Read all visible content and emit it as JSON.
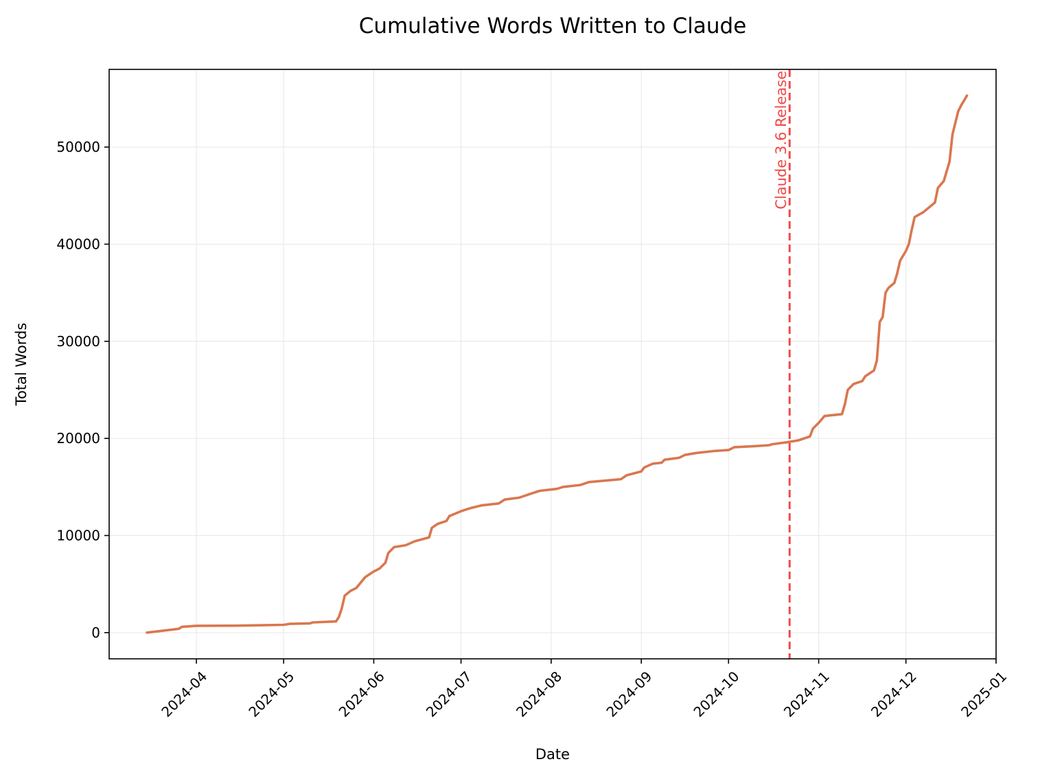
{
  "chart_data": {
    "type": "line",
    "title": "Cumulative Words Written to Claude",
    "xlabel": "Date",
    "ylabel": "Total Words",
    "x_axis_type": "date",
    "xlim": [
      "2024-03-02",
      "2025-01-01"
    ],
    "ylim": [
      -2700,
      58000
    ],
    "x_ticks": [
      "2024-04",
      "2024-05",
      "2024-06",
      "2024-07",
      "2024-08",
      "2024-09",
      "2024-10",
      "2024-11",
      "2024-12",
      "2025-01"
    ],
    "y_ticks": [
      0,
      10000,
      20000,
      30000,
      40000,
      50000
    ],
    "grid": true,
    "series": [
      {
        "color": "#d9774f",
        "points": [
          [
            "2024-03-15",
            0
          ],
          [
            "2024-03-26",
            400
          ],
          [
            "2024-03-27",
            600
          ],
          [
            "2024-04-01",
            700
          ],
          [
            "2024-04-15",
            720
          ],
          [
            "2024-05-01",
            800
          ],
          [
            "2024-05-03",
            900
          ],
          [
            "2024-05-10",
            950
          ],
          [
            "2024-05-11",
            1050
          ],
          [
            "2024-05-19",
            1150
          ],
          [
            "2024-05-20",
            1600
          ],
          [
            "2024-05-21",
            2500
          ],
          [
            "2024-05-22",
            3800
          ],
          [
            "2024-05-24",
            4300
          ],
          [
            "2024-05-26",
            4600
          ],
          [
            "2024-05-29",
            5700
          ],
          [
            "2024-06-01",
            6300
          ],
          [
            "2024-06-03",
            6600
          ],
          [
            "2024-06-05",
            7200
          ],
          [
            "2024-06-06",
            8200
          ],
          [
            "2024-06-08",
            8800
          ],
          [
            "2024-06-12",
            9000
          ],
          [
            "2024-06-15",
            9400
          ],
          [
            "2024-06-20",
            9800
          ],
          [
            "2024-06-21",
            10800
          ],
          [
            "2024-06-23",
            11200
          ],
          [
            "2024-06-26",
            11500
          ],
          [
            "2024-06-27",
            12000
          ],
          [
            "2024-07-01",
            12500
          ],
          [
            "2024-07-04",
            12800
          ],
          [
            "2024-07-08",
            13100
          ],
          [
            "2024-07-14",
            13300
          ],
          [
            "2024-07-16",
            13700
          ],
          [
            "2024-07-21",
            13900
          ],
          [
            "2024-07-24",
            14200
          ],
          [
            "2024-07-28",
            14600
          ],
          [
            "2024-08-03",
            14800
          ],
          [
            "2024-08-05",
            15000
          ],
          [
            "2024-08-11",
            15200
          ],
          [
            "2024-08-14",
            15500
          ],
          [
            "2024-08-25",
            15800
          ],
          [
            "2024-08-27",
            16200
          ],
          [
            "2024-09-01",
            16600
          ],
          [
            "2024-09-02",
            17000
          ],
          [
            "2024-09-05",
            17400
          ],
          [
            "2024-09-08",
            17500
          ],
          [
            "2024-09-09",
            17800
          ],
          [
            "2024-09-14",
            18000
          ],
          [
            "2024-09-16",
            18300
          ],
          [
            "2024-09-20",
            18500
          ],
          [
            "2024-09-26",
            18700
          ],
          [
            "2024-10-01",
            18800
          ],
          [
            "2024-10-03",
            19100
          ],
          [
            "2024-10-10",
            19200
          ],
          [
            "2024-10-15",
            19300
          ],
          [
            "2024-10-16",
            19400
          ],
          [
            "2024-10-21",
            19600
          ],
          [
            "2024-10-25",
            19800
          ],
          [
            "2024-10-29",
            20200
          ],
          [
            "2024-10-30",
            21000
          ],
          [
            "2024-11-01",
            21600
          ],
          [
            "2024-11-03",
            22300
          ],
          [
            "2024-11-09",
            22500
          ],
          [
            "2024-11-10",
            23500
          ],
          [
            "2024-11-11",
            25000
          ],
          [
            "2024-11-13",
            25600
          ],
          [
            "2024-11-16",
            25900
          ],
          [
            "2024-11-17",
            26400
          ],
          [
            "2024-11-20",
            27000
          ],
          [
            "2024-11-21",
            28000
          ],
          [
            "2024-11-22",
            32000
          ],
          [
            "2024-11-23",
            32500
          ],
          [
            "2024-11-24",
            35000
          ],
          [
            "2024-11-25",
            35500
          ],
          [
            "2024-11-27",
            36000
          ],
          [
            "2024-11-28",
            37000
          ],
          [
            "2024-11-29",
            38300
          ],
          [
            "2024-12-01",
            39300
          ],
          [
            "2024-12-02",
            40000
          ],
          [
            "2024-12-03",
            41500
          ],
          [
            "2024-12-04",
            42800
          ],
          [
            "2024-12-07",
            43300
          ],
          [
            "2024-12-09",
            43800
          ],
          [
            "2024-12-11",
            44300
          ],
          [
            "2024-12-12",
            45800
          ],
          [
            "2024-12-14",
            46500
          ],
          [
            "2024-12-15",
            47500
          ],
          [
            "2024-12-16",
            48500
          ],
          [
            "2024-12-17",
            51300
          ],
          [
            "2024-12-18",
            52500
          ],
          [
            "2024-12-19",
            53700
          ],
          [
            "2024-12-20",
            54300
          ],
          [
            "2024-12-22",
            55300
          ]
        ]
      }
    ],
    "annotation": {
      "label": "Claude 3.6 Release",
      "x": "2024-10-22",
      "color": "#f04a48",
      "style": "dashed"
    }
  }
}
